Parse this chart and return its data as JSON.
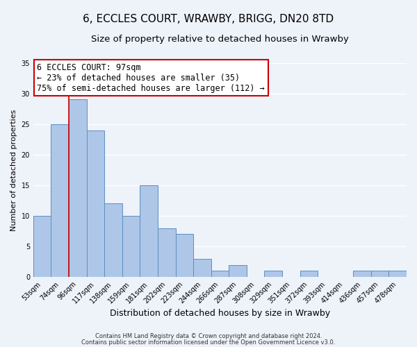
{
  "title": "6, ECCLES COURT, WRAWBY, BRIGG, DN20 8TD",
  "subtitle": "Size of property relative to detached houses in Wrawby",
  "xlabel": "Distribution of detached houses by size in Wrawby",
  "ylabel": "Number of detached properties",
  "bin_labels": [
    "53sqm",
    "74sqm",
    "96sqm",
    "117sqm",
    "138sqm",
    "159sqm",
    "181sqm",
    "202sqm",
    "223sqm",
    "244sqm",
    "266sqm",
    "287sqm",
    "308sqm",
    "329sqm",
    "351sqm",
    "372sqm",
    "393sqm",
    "414sqm",
    "436sqm",
    "457sqm",
    "478sqm"
  ],
  "bar_values": [
    10,
    25,
    29,
    24,
    12,
    10,
    15,
    8,
    7,
    3,
    1,
    2,
    0,
    1,
    0,
    1,
    0,
    0,
    1,
    1,
    1
  ],
  "bar_color": "#aec6e8",
  "bar_edge_color": "#5a8fc0",
  "vline_color": "#cc0000",
  "ylim": [
    0,
    35
  ],
  "yticks": [
    0,
    5,
    10,
    15,
    20,
    25,
    30,
    35
  ],
  "annotation_title": "6 ECCLES COURT: 97sqm",
  "annotation_line1": "← 23% of detached houses are smaller (35)",
  "annotation_line2": "75% of semi-detached houses are larger (112) →",
  "annotation_box_color": "#ffffff",
  "annotation_box_edge": "#cc0000",
  "footer1": "Contains HM Land Registry data © Crown copyright and database right 2024.",
  "footer2": "Contains public sector information licensed under the Open Government Licence v3.0.",
  "background_color": "#eef2f9",
  "grid_color": "#ffffff",
  "title_fontsize": 11,
  "subtitle_fontsize": 9.5,
  "tick_fontsize": 7,
  "ylabel_fontsize": 8,
  "xlabel_fontsize": 9
}
